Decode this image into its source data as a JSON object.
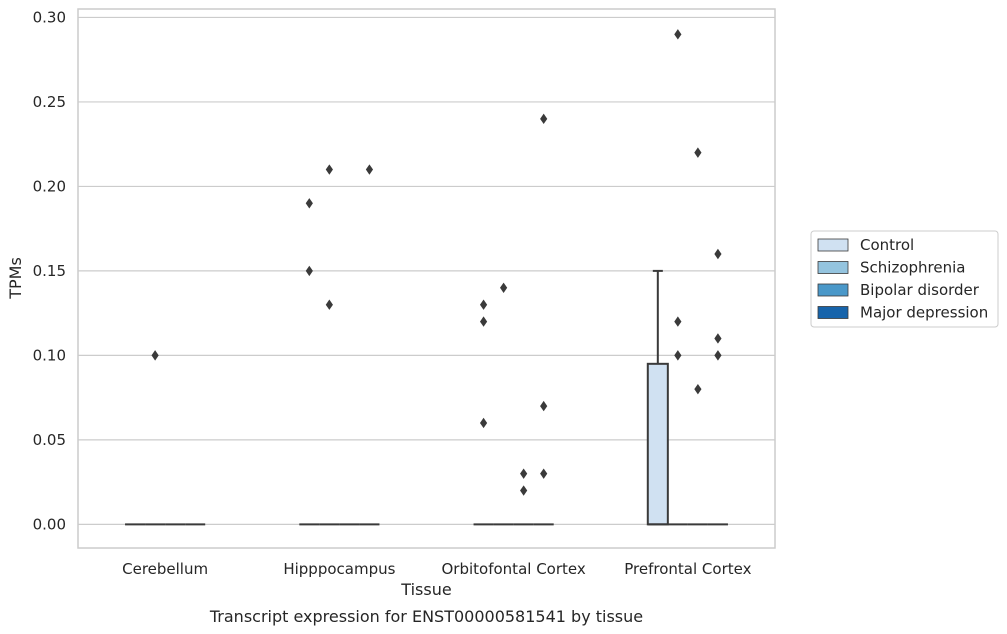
{
  "chart_data": {
    "type": "boxplot",
    "title": "Transcript expression for ENST00000581541 by tissue",
    "xlabel": "Tissue",
    "ylabel": "TPMs",
    "categories": [
      "Cerebellum",
      "Hipppocampus",
      "Orbitofontal Cortex",
      "Prefrontal Cortex"
    ],
    "ylim": [
      -0.014,
      0.305
    ],
    "yticks": [
      "0.00",
      "0.05",
      "0.10",
      "0.15",
      "0.20",
      "0.25",
      "0.30"
    ],
    "grid": true,
    "legend_placement": "right",
    "series": [
      {
        "name": "Control",
        "color": "#d0e1f2",
        "boxes": [
          {
            "q1": 0,
            "median": 0,
            "q3": 0,
            "whisker_low": 0,
            "whisker_high": 0,
            "outliers": []
          },
          {
            "q1": 0,
            "median": 0,
            "q3": 0,
            "whisker_low": 0,
            "whisker_high": 0,
            "outliers": [
              0.19,
              0.15
            ]
          },
          {
            "q1": 0,
            "median": 0,
            "q3": 0,
            "whisker_low": 0,
            "whisker_high": 0,
            "outliers": [
              0.13,
              0.12,
              0.06
            ]
          },
          {
            "q1": 0,
            "median": 0,
            "q3": 0.095,
            "whisker_low": 0,
            "whisker_high": 0.15,
            "outliers": []
          }
        ]
      },
      {
        "name": "Schizophrenia",
        "color": "#94c4df",
        "boxes": [
          {
            "q1": 0,
            "median": 0,
            "q3": 0,
            "whisker_low": 0,
            "whisker_high": 0,
            "outliers": [
              0.1
            ]
          },
          {
            "q1": 0,
            "median": 0,
            "q3": 0,
            "whisker_low": 0,
            "whisker_high": 0,
            "outliers": [
              0.21,
              0.13
            ]
          },
          {
            "q1": 0,
            "median": 0,
            "q3": 0,
            "whisker_low": 0,
            "whisker_high": 0,
            "outliers": [
              0.14
            ]
          },
          {
            "q1": 0,
            "median": 0,
            "q3": 0,
            "whisker_low": 0,
            "whisker_high": 0,
            "outliers": [
              0.29,
              0.12,
              0.1
            ]
          }
        ]
      },
      {
        "name": "Bipolar disorder",
        "color": "#4a98c9",
        "boxes": [
          {
            "q1": 0,
            "median": 0,
            "q3": 0,
            "whisker_low": 0,
            "whisker_high": 0,
            "outliers": []
          },
          {
            "q1": 0,
            "median": 0,
            "q3": 0,
            "whisker_low": 0,
            "whisker_high": 0,
            "outliers": []
          },
          {
            "q1": 0,
            "median": 0,
            "q3": 0,
            "whisker_low": 0,
            "whisker_high": 0,
            "outliers": [
              0.03,
              0.02
            ]
          },
          {
            "q1": 0,
            "median": 0,
            "q3": 0,
            "whisker_low": 0,
            "whisker_high": 0,
            "outliers": [
              0.22,
              0.08
            ]
          }
        ]
      },
      {
        "name": "Major depression",
        "color": "#1764ab",
        "boxes": [
          {
            "q1": 0,
            "median": 0,
            "q3": 0,
            "whisker_low": 0,
            "whisker_high": 0,
            "outliers": []
          },
          {
            "q1": 0,
            "median": 0,
            "q3": 0,
            "whisker_low": 0,
            "whisker_high": 0,
            "outliers": [
              0.21
            ]
          },
          {
            "q1": 0,
            "median": 0,
            "q3": 0,
            "whisker_low": 0,
            "whisker_high": 0,
            "outliers": [
              0.24,
              0.07,
              0.03
            ]
          },
          {
            "q1": 0,
            "median": 0,
            "q3": 0,
            "whisker_low": 0,
            "whisker_high": 0,
            "outliers": [
              0.16,
              0.11,
              0.1
            ]
          }
        ]
      }
    ]
  }
}
